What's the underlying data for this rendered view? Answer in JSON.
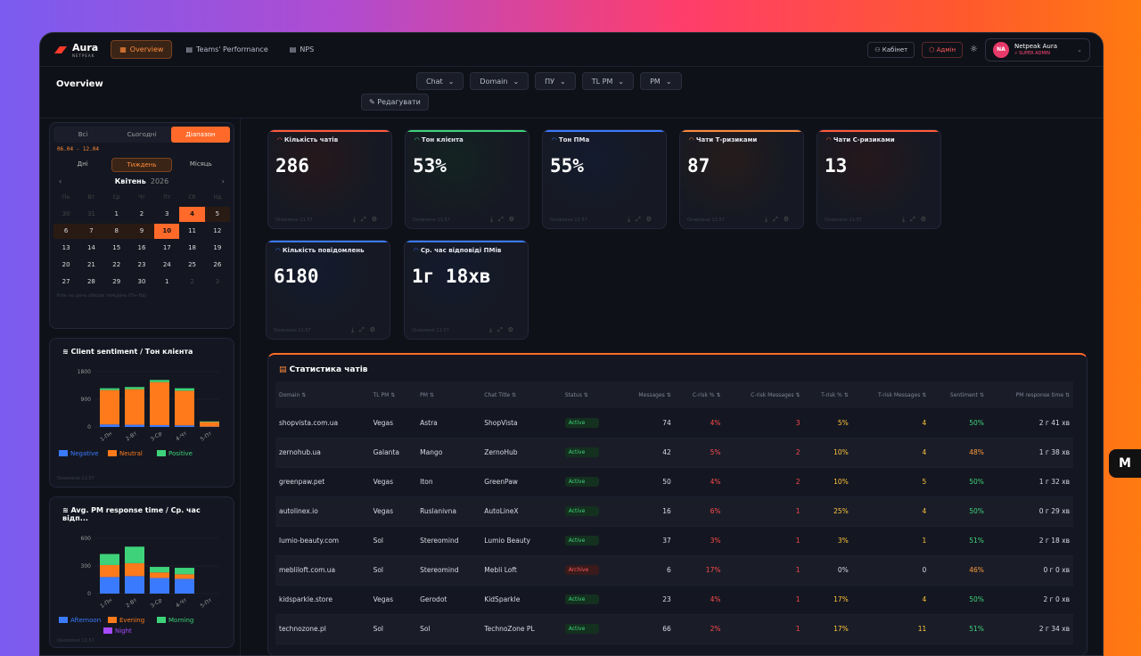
{
  "brand": {
    "name": "Aura",
    "sub": "NETPEAK"
  },
  "nav": [
    {
      "label": "Overview"
    },
    {
      "label": "Teams' Performance"
    },
    {
      "label": "NPS"
    }
  ],
  "top": {
    "cabinet": "Кабінет",
    "admin": "Адмін",
    "user_name": "Netpeak Aura",
    "user_role": "SUPER ADMIN",
    "initials": "NA"
  },
  "page": {
    "title": "Overview",
    "edit": "Редагувати"
  },
  "filters": [
    "Chat",
    "Domain",
    "ПУ",
    "TL PM",
    "PM"
  ],
  "calendar": {
    "modes": [
      "Всі",
      "Сьогодні",
      "Діапазон"
    ],
    "range": "06.04 - 12.04",
    "periods": [
      "Дні",
      "Тиждень",
      "Місяць"
    ],
    "month": "Квітень",
    "year": "2026",
    "weekdays": [
      "Пн",
      "Вт",
      "Ср",
      "Чт",
      "Пт",
      "Сб",
      "Нд"
    ],
    "days": [
      "30",
      "31",
      "1",
      "2",
      "3",
      "4",
      "5",
      "6",
      "7",
      "8",
      "9",
      "10",
      "11",
      "12",
      "13",
      "14",
      "15",
      "16",
      "17",
      "18",
      "19",
      "20",
      "21",
      "22",
      "23",
      "24",
      "25",
      "26",
      "27",
      "28",
      "29",
      "30",
      "1",
      "2",
      "3"
    ],
    "hint": "Клік на день обирає тиждень (Пн–Нд)"
  },
  "sentiment": {
    "title": "Client sentiment / Тон клієнта",
    "ticks": [
      "1800",
      "900",
      "0"
    ],
    "cats": [
      "1-Пн",
      "2-Вт",
      "3-Ср",
      "4-Чт",
      "5-Пт"
    ],
    "legend": [
      "Negative",
      "Neutral",
      "Positive"
    ],
    "footer": "Оновлено 11:57"
  },
  "response": {
    "title": "Avg. PM response time / Ср. час відп...",
    "ticks": [
      "600",
      "300",
      "0"
    ],
    "cats": [
      "1-Пн",
      "2-Вт",
      "3-Ср",
      "4-Чт",
      "5-Пт"
    ],
    "legend": [
      "Afternoon",
      "Evening",
      "Morning",
      "Night"
    ],
    "footer": "Оновлено 11:57"
  },
  "kpis": [
    {
      "title": "Кількість чатів",
      "value": "286",
      "color": "#ff5a3a",
      "footer": "Оновлено 11:57"
    },
    {
      "title": "Тон клієнта",
      "value": "53%",
      "color": "#3ed37a",
      "footer": "Оновлено 11:57"
    },
    {
      "title": "Тон ПМа",
      "value": "55%",
      "color": "#3a7aff",
      "footer": "Оновлено 11:57"
    },
    {
      "title": "Чати Т-ризиками",
      "value": "87",
      "color": "#ff8a3a",
      "footer": "Оновлено 11:57"
    },
    {
      "title": "Чати С-ризиками",
      "value": "13",
      "color": "#ff5a3a",
      "footer": "Оновлено 11:57"
    },
    {
      "title": "Кількість повідомлень",
      "value": "6180",
      "color": "#3a7aff",
      "footer": "Оновлено 11:57"
    },
    {
      "title": "Ср. час відповіді ПМів",
      "value": "1г 18хв",
      "color": "#3a7aff",
      "footer": "Оновлено 11:57"
    }
  ],
  "table": {
    "title": "Статистика чатів",
    "headers": [
      "Domain",
      "TL PM",
      "PM",
      "Chat Title",
      "Status",
      "Messages",
      "C-risk %",
      "C-risk Messages",
      "T-risk %",
      "T-risk Messages",
      "Sentiment",
      "PM response time"
    ],
    "rows": [
      [
        "shopvista.com.ua",
        "Vegas",
        "Astra",
        "ShopVista",
        "Active",
        "74",
        "4%",
        "3",
        "5%",
        "4",
        "50%",
        "2 г 41 хв"
      ],
      [
        "zernohub.ua",
        "Galanta",
        "Mango",
        "ZernoHub",
        "Active",
        "42",
        "5%",
        "2",
        "10%",
        "4",
        "48%",
        "1 г 38 хв"
      ],
      [
        "greenpaw.pet",
        "Vegas",
        "Iton",
        "GreenPaw",
        "Active",
        "50",
        "4%",
        "2",
        "10%",
        "5",
        "50%",
        "1 г 32 хв"
      ],
      [
        "autolinex.io",
        "Vegas",
        "Ruslanivna",
        "AutoLineX",
        "Active",
        "16",
        "6%",
        "1",
        "25%",
        "4",
        "50%",
        "0 г 29 хв"
      ],
      [
        "lumio-beauty.com",
        "Sol",
        "Stereomind",
        "Lumio Beauty",
        "Active",
        "37",
        "3%",
        "1",
        "3%",
        "1",
        "51%",
        "2 г 18 хв"
      ],
      [
        "mebliloft.com.ua",
        "Sol",
        "Stereomind",
        "Mebli Loft",
        "Archive",
        "6",
        "17%",
        "1",
        "0%",
        "0",
        "46%",
        "0 г 0 хв"
      ],
      [
        "kidsparkle.store",
        "Vegas",
        "Gerodot",
        "KidSparkle",
        "Active",
        "23",
        "4%",
        "1",
        "17%",
        "4",
        "50%",
        "2 г 0 хв"
      ],
      [
        "technozone.pl",
        "Sol",
        "Sol",
        "TechnoZone PL",
        "Active",
        "66",
        "2%",
        "1",
        "17%",
        "11",
        "51%",
        "2 г 34 хв"
      ]
    ]
  }
}
